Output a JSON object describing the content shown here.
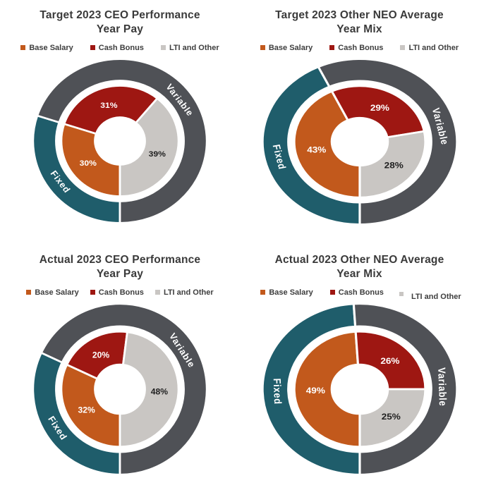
{
  "page": {
    "background": "#ffffff"
  },
  "colors": {
    "base_salary": "#C2591C",
    "cash_bonus": "#9E1712",
    "lti_other": "#C9C6C3",
    "fixed": "#1F5D6B",
    "variable": "#4F5156",
    "label_on_dark": "#FFFFFF",
    "label_on_light": "#1F1F1F",
    "title_text": "#3A3A3A",
    "legend_text": "#3E3E3E"
  },
  "legend": {
    "base_salary": "Base Salary",
    "cash_bonus": "Cash Bonus",
    "lti_other": "LTI and Other"
  },
  "chart_data": [
    {
      "type": "donut",
      "title_line1": "Target 2023 CEO Performance",
      "title_line2": "Year Pay",
      "legend_position": "top",
      "start_angle_deg": 180,
      "direction": "clockwise",
      "inner": {
        "categories": [
          "Base Salary",
          "Cash Bonus",
          "LTI and Other"
        ],
        "values": [
          30,
          31,
          39
        ],
        "labels": [
          "30%",
          "31%",
          "39%"
        ]
      },
      "outer": {
        "categories": [
          "Fixed",
          "Variable"
        ],
        "values": [
          30,
          70
        ]
      }
    },
    {
      "type": "donut",
      "title_line1": "Target 2023 Other NEO Average",
      "title_line2": "Year Mix",
      "legend_position": "top",
      "start_angle_deg": 180,
      "direction": "clockwise",
      "inner": {
        "categories": [
          "Base Salary",
          "Cash Bonus",
          "LTI and Other"
        ],
        "values": [
          43,
          29,
          28
        ],
        "labels": [
          "43%",
          "29%",
          "28%"
        ]
      },
      "outer": {
        "categories": [
          "Fixed",
          "Variable"
        ],
        "values": [
          43,
          57
        ]
      }
    },
    {
      "type": "donut",
      "title_line1": "Actual 2023 CEO Performance",
      "title_line2": "Year Pay",
      "legend_position": "top",
      "start_angle_deg": 180,
      "direction": "clockwise",
      "inner": {
        "categories": [
          "Base Salary",
          "Cash Bonus",
          "LTI and Other"
        ],
        "values": [
          32,
          20,
          48
        ],
        "labels": [
          "32%",
          "20%",
          "48%"
        ]
      },
      "outer": {
        "categories": [
          "Fixed",
          "Variable"
        ],
        "values": [
          32,
          68
        ]
      }
    },
    {
      "type": "donut",
      "title_line1": "Actual 2023 Other NEO Average",
      "title_line2": "Year Mix",
      "legend_position": "top",
      "start_angle_deg": 180,
      "direction": "clockwise",
      "inner": {
        "categories": [
          "Base Salary",
          "Cash Bonus",
          "LTI and Other"
        ],
        "values": [
          49,
          26,
          25
        ],
        "labels": [
          "49%",
          "26%",
          "25%"
        ]
      },
      "outer": {
        "categories": [
          "Fixed",
          "Variable"
        ],
        "values": [
          49,
          51
        ]
      }
    }
  ]
}
